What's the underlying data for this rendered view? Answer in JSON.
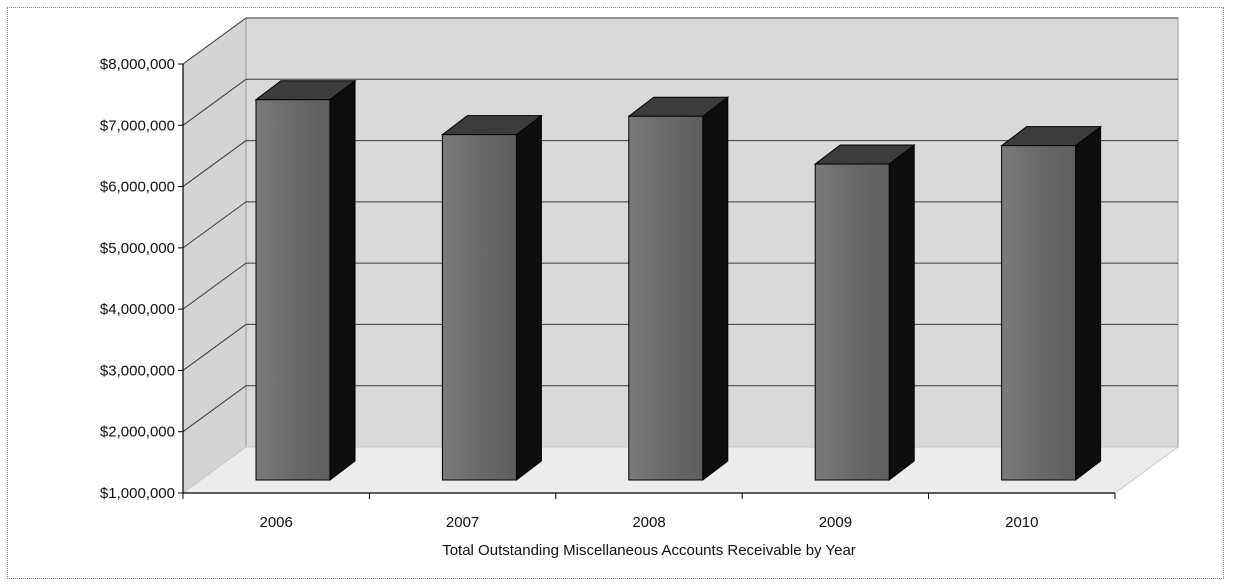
{
  "chart_data": {
    "type": "bar",
    "style": "3d-column",
    "categories": [
      "2006",
      "2007",
      "2008",
      "2009",
      "2010"
    ],
    "values": [
      7450000,
      6880000,
      7180000,
      6400000,
      6700000
    ],
    "xlabel": "Total Outstanding Miscellaneous Accounts Receivable by Year",
    "ylabel": "",
    "ylim": [
      1000000,
      8000000
    ],
    "yticks": [
      1000000,
      2000000,
      3000000,
      4000000,
      5000000,
      6000000,
      7000000,
      8000000
    ],
    "ytick_labels": [
      "$1,000,000",
      "$2,000,000",
      "$3,000,000",
      "$4,000,000",
      "$5,000,000",
      "$6,000,000",
      "$7,000,000",
      "$8,000,000"
    ],
    "grid": true,
    "legend": "none"
  },
  "colors": {
    "back_wall": "#d9d9d9",
    "side_wall": "#d4d4d4",
    "floor": "#ececec",
    "bar_front": "#6e6e6e",
    "bar_top": "#3c3c3c",
    "bar_side": "#0e0e0e",
    "grid": "#3a3a3a"
  }
}
